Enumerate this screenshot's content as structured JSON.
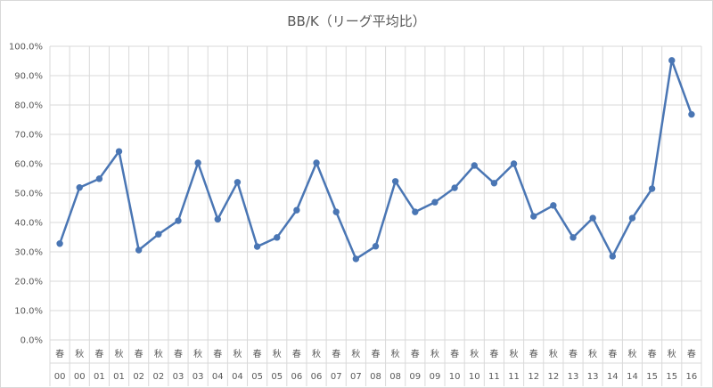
{
  "chart_data": {
    "type": "line",
    "title": "BB/K（リーグ平均比）",
    "xlabel": "",
    "ylabel": "",
    "ylim": [
      0,
      100
    ],
    "y_tick_labels": [
      "0.0%",
      "10.0%",
      "20.0%",
      "30.0%",
      "40.0%",
      "50.0%",
      "60.0%",
      "70.0%",
      "80.0%",
      "90.0%",
      "100.0%"
    ],
    "grid": true,
    "legend": "none",
    "categories": [
      {
        "season": "春",
        "year": "00"
      },
      {
        "season": "秋",
        "year": "00"
      },
      {
        "season": "春",
        "year": "01"
      },
      {
        "season": "秋",
        "year": "01"
      },
      {
        "season": "春",
        "year": "02"
      },
      {
        "season": "秋",
        "year": "02"
      },
      {
        "season": "春",
        "year": "03"
      },
      {
        "season": "秋",
        "year": "03"
      },
      {
        "season": "春",
        "year": "04"
      },
      {
        "season": "秋",
        "year": "04"
      },
      {
        "season": "春",
        "year": "05"
      },
      {
        "season": "秋",
        "year": "05"
      },
      {
        "season": "春",
        "year": "06"
      },
      {
        "season": "秋",
        "year": "06"
      },
      {
        "season": "春",
        "year": "07"
      },
      {
        "season": "秋",
        "year": "07"
      },
      {
        "season": "春",
        "year": "08"
      },
      {
        "season": "秋",
        "year": "08"
      },
      {
        "season": "春",
        "year": "09"
      },
      {
        "season": "秋",
        "year": "09"
      },
      {
        "season": "春",
        "year": "10"
      },
      {
        "season": "秋",
        "year": "10"
      },
      {
        "season": "春",
        "year": "11"
      },
      {
        "season": "秋",
        "year": "11"
      },
      {
        "season": "春",
        "year": "12"
      },
      {
        "season": "秋",
        "year": "12"
      },
      {
        "season": "春",
        "year": "13"
      },
      {
        "season": "秋",
        "year": "13"
      },
      {
        "season": "春",
        "year": "14"
      },
      {
        "season": "秋",
        "year": "14"
      },
      {
        "season": "春",
        "year": "15"
      },
      {
        "season": "秋",
        "year": "15"
      },
      {
        "season": "春",
        "year": "16"
      }
    ],
    "series": [
      {
        "values": [
          32.8,
          51.9,
          54.9,
          64.2,
          30.6,
          36.0,
          40.6,
          60.3,
          41.1,
          53.7,
          31.8,
          34.9,
          44.2,
          60.3,
          43.6,
          27.6,
          31.9,
          54.0,
          43.6,
          46.9,
          51.8,
          59.4,
          53.4,
          60.0,
          42.1,
          45.8,
          34.9,
          41.5,
          28.5,
          41.5,
          51.5,
          95.2,
          76.8
        ],
        "color": "#4a76b4"
      }
    ]
  }
}
